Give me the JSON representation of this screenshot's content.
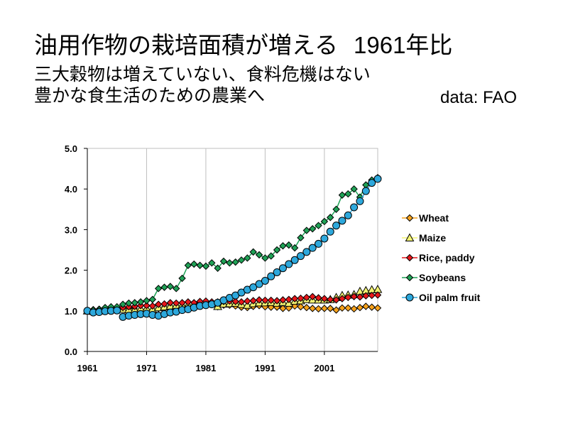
{
  "slide": {
    "title": "油用作物の栽培面積が増える",
    "title_year": "1961年比",
    "subtitle1": "三大穀物は増えていない、食料危機はない",
    "subtitle2": "豊かな食生活のための農業へ",
    "source": "data: FAO"
  },
  "chart_data": {
    "type": "line",
    "title": "",
    "xlabel": "",
    "ylabel": "",
    "xlim": [
      1961,
      2010
    ],
    "ylim": [
      0,
      5
    ],
    "x_ticks": [
      "1961",
      "1971",
      "1981",
      "1991",
      "2001"
    ],
    "y_ticks": [
      "0.0",
      "1.0",
      "2.0",
      "3.0",
      "4.0",
      "5.0"
    ],
    "grid": "vertical",
    "legend": "right",
    "x": [
      1961,
      1962,
      1963,
      1964,
      1965,
      1966,
      1967,
      1968,
      1969,
      1970,
      1971,
      1972,
      1973,
      1974,
      1975,
      1976,
      1977,
      1978,
      1979,
      1980,
      1981,
      1982,
      1983,
      1984,
      1985,
      1986,
      1987,
      1988,
      1989,
      1990,
      1991,
      1992,
      1993,
      1994,
      1995,
      1996,
      1997,
      1998,
      1999,
      2000,
      2001,
      2002,
      2003,
      2004,
      2005,
      2006,
      2007,
      2008,
      2009,
      2010
    ],
    "series": [
      {
        "name": "Wheat",
        "color": "#f7a21b",
        "marker": "diamond",
        "values": [
          1.0,
          0.98,
          1.0,
          1.02,
          1.02,
          1.03,
          1.06,
          1.07,
          1.04,
          1.02,
          1.03,
          1.02,
          1.06,
          1.09,
          1.11,
          1.12,
          1.1,
          1.11,
          1.12,
          1.14,
          1.16,
          1.16,
          1.1,
          1.14,
          1.14,
          1.12,
          1.09,
          1.08,
          1.11,
          1.13,
          1.1,
          1.09,
          1.09,
          1.06,
          1.07,
          1.12,
          1.1,
          1.08,
          1.06,
          1.05,
          1.06,
          1.06,
          1.02,
          1.07,
          1.07,
          1.05,
          1.08,
          1.11,
          1.09,
          1.07
        ]
      },
      {
        "name": "Maize",
        "color": "#f3f372",
        "marker": "triangle",
        "values": [
          1.0,
          0.99,
          1.0,
          1.02,
          1.03,
          1.04,
          1.04,
          1.03,
          1.03,
          1.05,
          1.06,
          1.04,
          1.08,
          1.1,
          1.12,
          1.14,
          1.14,
          1.15,
          1.16,
          1.17,
          1.2,
          1.19,
          1.11,
          1.17,
          1.18,
          1.19,
          1.16,
          1.14,
          1.18,
          1.2,
          1.2,
          1.21,
          1.19,
          1.21,
          1.19,
          1.24,
          1.25,
          1.28,
          1.27,
          1.27,
          1.27,
          1.28,
          1.33,
          1.38,
          1.39,
          1.4,
          1.48,
          1.5,
          1.52,
          1.53
        ]
      },
      {
        "name": "Rice, paddy",
        "color": "#e8171a",
        "marker": "diamond",
        "values": [
          1.0,
          1.03,
          1.04,
          1.05,
          1.06,
          1.07,
          1.08,
          1.1,
          1.11,
          1.13,
          1.13,
          1.12,
          1.16,
          1.17,
          1.2,
          1.19,
          1.2,
          1.22,
          1.2,
          1.23,
          1.24,
          1.22,
          1.22,
          1.23,
          1.24,
          1.23,
          1.22,
          1.24,
          1.25,
          1.27,
          1.26,
          1.26,
          1.25,
          1.27,
          1.28,
          1.3,
          1.31,
          1.33,
          1.35,
          1.32,
          1.3,
          1.28,
          1.27,
          1.3,
          1.33,
          1.35,
          1.34,
          1.37,
          1.38,
          1.39
        ]
      },
      {
        "name": "Soybeans",
        "color": "#1fa256",
        "marker": "diamond",
        "values": [
          1.0,
          1.02,
          1.03,
          1.08,
          1.1,
          1.1,
          1.16,
          1.19,
          1.2,
          1.22,
          1.25,
          1.28,
          1.55,
          1.58,
          1.6,
          1.55,
          1.8,
          2.12,
          2.15,
          2.12,
          2.1,
          2.18,
          2.05,
          2.22,
          2.18,
          2.2,
          2.25,
          2.3,
          2.45,
          2.38,
          2.3,
          2.35,
          2.5,
          2.6,
          2.62,
          2.55,
          2.8,
          2.98,
          3.02,
          3.1,
          3.2,
          3.3,
          3.5,
          3.85,
          3.88,
          4.0,
          3.8,
          4.1,
          4.22,
          4.28
        ]
      },
      {
        "name": "Oil palm fruit",
        "color": "#2da8dc",
        "marker": "circle",
        "values": [
          1.0,
          0.96,
          0.97,
          0.99,
          1.0,
          1.01,
          0.85,
          0.88,
          0.9,
          0.92,
          0.93,
          0.9,
          0.88,
          0.92,
          0.96,
          0.98,
          1.02,
          1.04,
          1.08,
          1.12,
          1.14,
          1.16,
          1.2,
          1.26,
          1.32,
          1.38,
          1.45,
          1.52,
          1.58,
          1.66,
          1.74,
          1.85,
          1.95,
          2.05,
          2.15,
          2.25,
          2.35,
          2.45,
          2.55,
          2.65,
          2.78,
          2.95,
          3.1,
          3.22,
          3.35,
          3.55,
          3.7,
          3.95,
          4.15,
          4.25
        ]
      }
    ]
  }
}
